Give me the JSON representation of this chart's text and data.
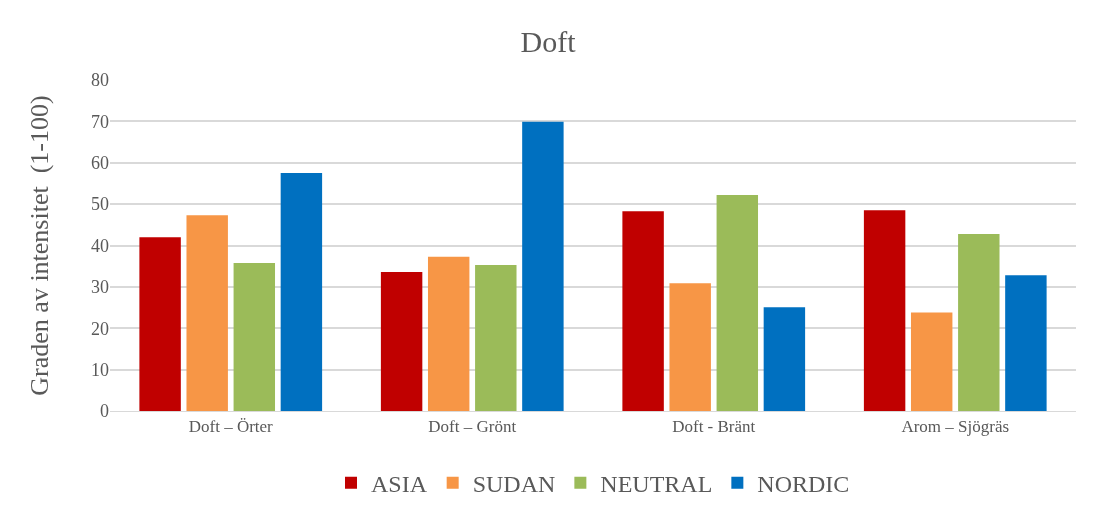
{
  "chart_data": {
    "type": "bar",
    "title": "Doft",
    "ylabel": "Graden av intensitet  (1-100)",
    "categories": [
      "Doft – Örter",
      "Doft – Grönt",
      "Doft - Bränt",
      "Arom – Sjögräs"
    ],
    "series": [
      {
        "name": "ASIA",
        "color": "#c00000",
        "values": [
          42.0,
          33.6,
          48.3,
          48.5
        ]
      },
      {
        "name": "SUDAN",
        "color": "#f79646",
        "values": [
          47.3,
          37.3,
          30.9,
          23.8
        ]
      },
      {
        "name": "NEUTRAL",
        "color": "#9bbb59",
        "values": [
          35.8,
          35.3,
          52.2,
          42.8
        ]
      },
      {
        "name": "NORDIC",
        "color": "#0070c0",
        "values": [
          57.5,
          69.9,
          25.1,
          32.8
        ]
      }
    ],
    "ylim": [
      0,
      80
    ],
    "yticks": [
      0,
      10,
      20,
      30,
      40,
      50,
      60,
      70,
      80
    ],
    "grid": "y",
    "legend": "bottom"
  }
}
